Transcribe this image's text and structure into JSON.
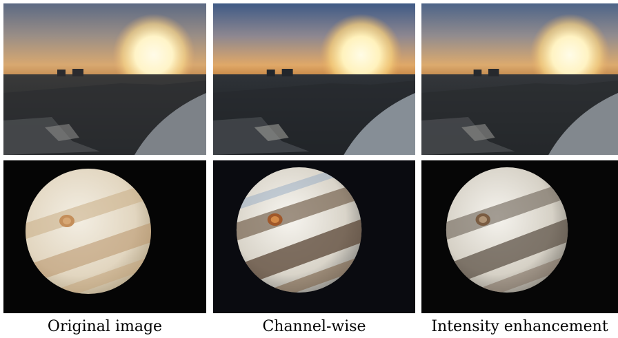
{
  "figure": {
    "columns": [
      {
        "caption": "Original image",
        "variant": "original"
      },
      {
        "caption": "Channel-wise",
        "variant": "channel"
      },
      {
        "caption": "Intensity enhancement",
        "variant": "intensity"
      }
    ],
    "rows": [
      "sunset-cityscape",
      "jupiter"
    ]
  }
}
